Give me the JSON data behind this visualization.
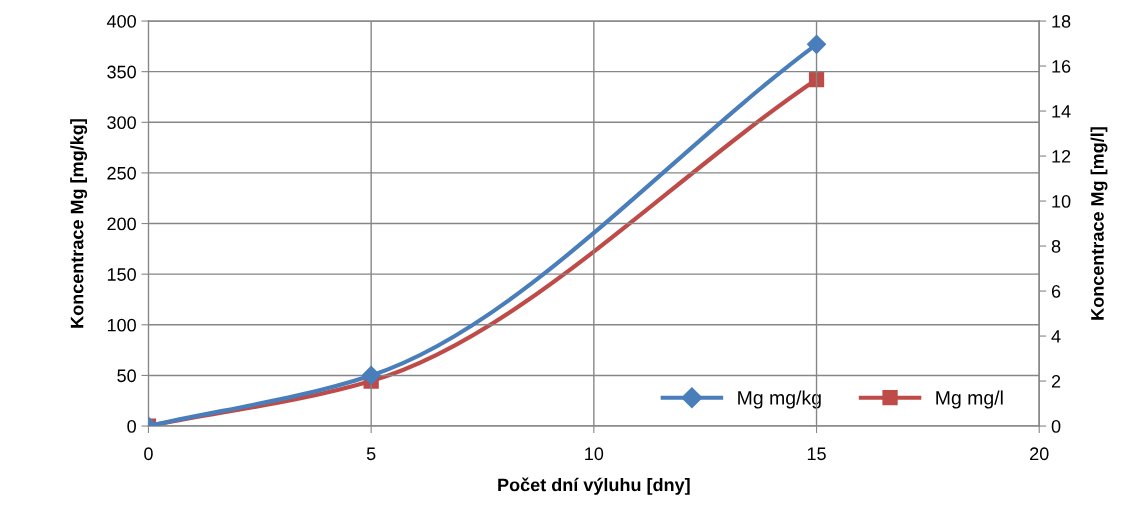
{
  "chart_data": {
    "type": "line",
    "xlabel": "Počet dní výluhu [dny]",
    "ylabel": "Koncentrace Mg [mg/kg]",
    "y2label": "Koncentrace Mg [mg/l]",
    "x": [
      0,
      5,
      15
    ],
    "series": [
      {
        "name": "Mg mg/kg",
        "color": "#4a7ebb",
        "values": [
          0,
          50,
          377
        ],
        "marker": "diamond"
      },
      {
        "name": "Mg mg/l",
        "color": "#be4b48",
        "values": [
          0,
          2,
          15.4
        ],
        "marker": "square",
        "axis": "y2"
      }
    ],
    "xlim": [
      0,
      20
    ],
    "xticks": [
      0,
      5,
      10,
      15,
      20
    ],
    "ylim": [
      0,
      400
    ],
    "yticks": [
      0,
      50,
      100,
      150,
      200,
      250,
      300,
      350,
      400
    ],
    "y2lim": [
      0,
      18
    ],
    "y2ticks": [
      0,
      2,
      4,
      6,
      8,
      10,
      12,
      14,
      16,
      18
    ],
    "grid": true,
    "legend": "bottom right",
    "line_style": "solid"
  }
}
